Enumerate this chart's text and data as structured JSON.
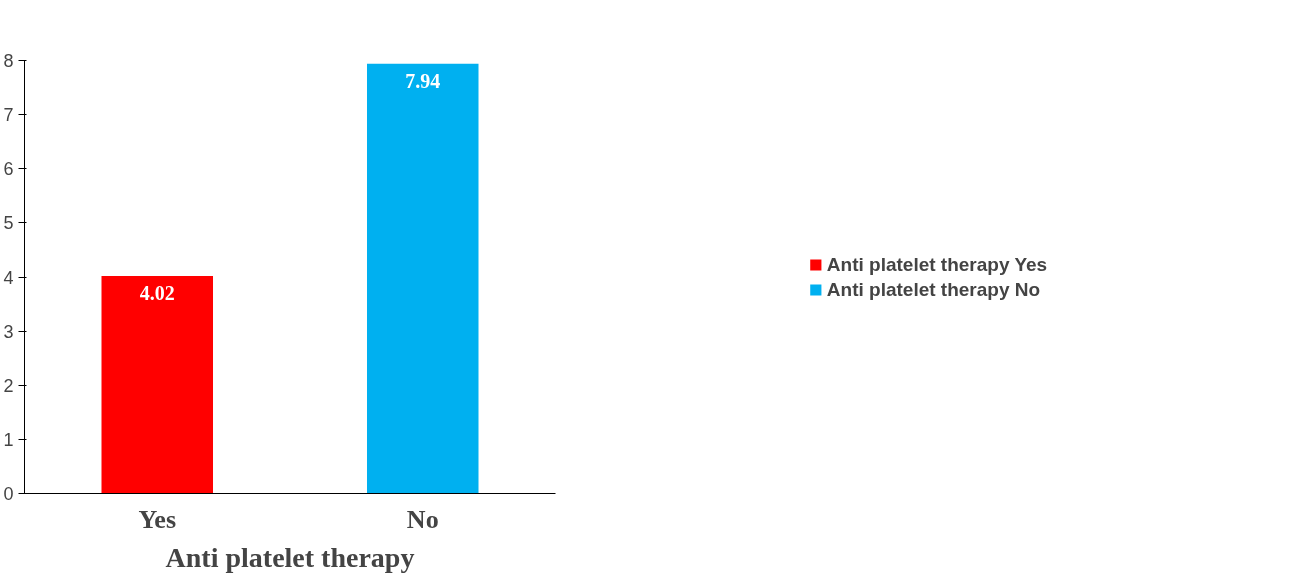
{
  "chart_data": {
    "type": "bar",
    "categories": [
      "Yes",
      "No"
    ],
    "xlabel": "Anti platelet therapy",
    "series": [
      {
        "name": "Anti platelet therapy Yes",
        "color": "#ff0000",
        "values": [
          4.02,
          null
        ]
      },
      {
        "name": "Anti platelet therapy No",
        "color": "#00b0f0",
        "values": [
          null,
          7.94
        ]
      }
    ],
    "ylim": [
      0,
      8
    ],
    "yticks": [
      0,
      1,
      2,
      3,
      4,
      5,
      6,
      7,
      8
    ],
    "data_labels": true,
    "legend": "right",
    "grid": false
  }
}
